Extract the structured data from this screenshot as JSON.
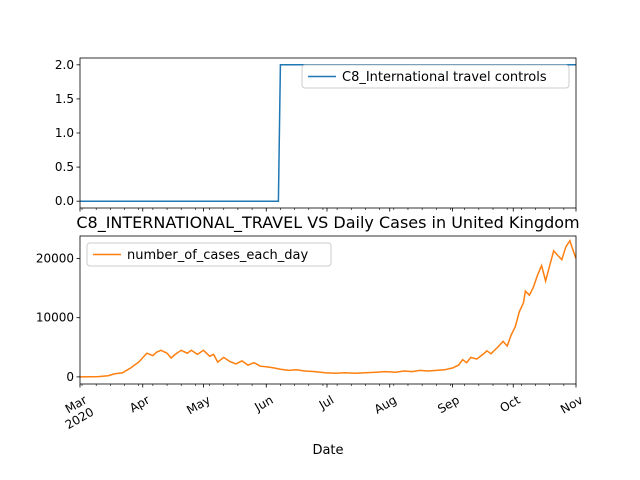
{
  "chart_data": [
    {
      "type": "line",
      "title": "",
      "xlabel": "",
      "ylabel": "",
      "ylim": [
        -0.1,
        2.1
      ],
      "yticks": [
        "0.0",
        "0.5",
        "1.0",
        "1.5",
        "2.0"
      ],
      "legend_position": "top-right",
      "grid": false,
      "series": [
        {
          "name": "C8_International travel controls",
          "color": "#1f77b4",
          "points": [
            [
              "2020-03-01",
              0
            ],
            [
              "2020-06-07",
              0
            ],
            [
              "2020-06-08",
              2
            ],
            [
              "2020-11-01",
              2
            ]
          ]
        }
      ]
    },
    {
      "type": "line",
      "title": "C8_INTERNATIONAL_TRAVEL VS Daily Cases in United Kingdom",
      "xlabel": "Date",
      "ylabel": "",
      "ylim": [
        -1200,
        23800
      ],
      "yticks": [
        "0",
        "10000",
        "20000"
      ],
      "xticks": [
        "Mar\n2020",
        "Apr",
        "May",
        "Jun",
        "Jul",
        "Aug",
        "Sep",
        "Oct",
        "Nov"
      ],
      "legend_position": "top-left",
      "grid": false,
      "series": [
        {
          "name": "number_of_cases_each_day",
          "color": "#ff7f0e",
          "points": [
            [
              "2020-03-01",
              0
            ],
            [
              "2020-03-10",
              50
            ],
            [
              "2020-03-15",
              200
            ],
            [
              "2020-03-18",
              500
            ],
            [
              "2020-03-22",
              700
            ],
            [
              "2020-03-26",
              1500
            ],
            [
              "2020-03-30",
              2500
            ],
            [
              "2020-04-03",
              4000
            ],
            [
              "2020-04-06",
              3600
            ],
            [
              "2020-04-08",
              4200
            ],
            [
              "2020-04-10",
              4500
            ],
            [
              "2020-04-13",
              4000
            ],
            [
              "2020-04-15",
              3200
            ],
            [
              "2020-04-17",
              3800
            ],
            [
              "2020-04-20",
              4500
            ],
            [
              "2020-04-23",
              4000
            ],
            [
              "2020-04-25",
              4500
            ],
            [
              "2020-04-28",
              3800
            ],
            [
              "2020-05-01",
              4500
            ],
            [
              "2020-05-04",
              3500
            ],
            [
              "2020-05-06",
              3800
            ],
            [
              "2020-05-08",
              2500
            ],
            [
              "2020-05-11",
              3300
            ],
            [
              "2020-05-14",
              2600
            ],
            [
              "2020-05-17",
              2200
            ],
            [
              "2020-05-20",
              2700
            ],
            [
              "2020-05-23",
              2000
            ],
            [
              "2020-05-26",
              2400
            ],
            [
              "2020-05-29",
              1800
            ],
            [
              "2020-06-01",
              1700
            ],
            [
              "2020-06-05",
              1500
            ],
            [
              "2020-06-08",
              1300
            ],
            [
              "2020-06-12",
              1100
            ],
            [
              "2020-06-16",
              1200
            ],
            [
              "2020-06-20",
              1000
            ],
            [
              "2020-06-25",
              900
            ],
            [
              "2020-06-30",
              700
            ],
            [
              "2020-07-05",
              600
            ],
            [
              "2020-07-10",
              700
            ],
            [
              "2020-07-15",
              600
            ],
            [
              "2020-07-20",
              700
            ],
            [
              "2020-07-25",
              800
            ],
            [
              "2020-07-30",
              900
            ],
            [
              "2020-08-04",
              800
            ],
            [
              "2020-08-08",
              1000
            ],
            [
              "2020-08-12",
              900
            ],
            [
              "2020-08-16",
              1100
            ],
            [
              "2020-08-20",
              1000
            ],
            [
              "2020-08-24",
              1100
            ],
            [
              "2020-08-28",
              1200
            ],
            [
              "2020-09-01",
              1500
            ],
            [
              "2020-09-04",
              2000
            ],
            [
              "2020-09-06",
              2900
            ],
            [
              "2020-09-08",
              2400
            ],
            [
              "2020-09-10",
              3300
            ],
            [
              "2020-09-13",
              3000
            ],
            [
              "2020-09-16",
              3800
            ],
            [
              "2020-09-18",
              4400
            ],
            [
              "2020-09-20",
              3900
            ],
            [
              "2020-09-23",
              4900
            ],
            [
              "2020-09-26",
              6000
            ],
            [
              "2020-09-28",
              5200
            ],
            [
              "2020-09-30",
              7100
            ],
            [
              "2020-10-02",
              8500
            ],
            [
              "2020-10-04",
              11000
            ],
            [
              "2020-10-06",
              12500
            ],
            [
              "2020-10-07",
              14500
            ],
            [
              "2020-10-09",
              13800
            ],
            [
              "2020-10-11",
              15200
            ],
            [
              "2020-10-13",
              17200
            ],
            [
              "2020-10-15",
              18800
            ],
            [
              "2020-10-17",
              16200
            ],
            [
              "2020-10-19",
              18800
            ],
            [
              "2020-10-21",
              21300
            ],
            [
              "2020-10-23",
              20500
            ],
            [
              "2020-10-25",
              19800
            ],
            [
              "2020-10-27",
              22000
            ],
            [
              "2020-10-29",
              23000
            ],
            [
              "2020-10-30",
              21900
            ],
            [
              "2020-11-01",
              20000
            ]
          ]
        }
      ]
    }
  ]
}
